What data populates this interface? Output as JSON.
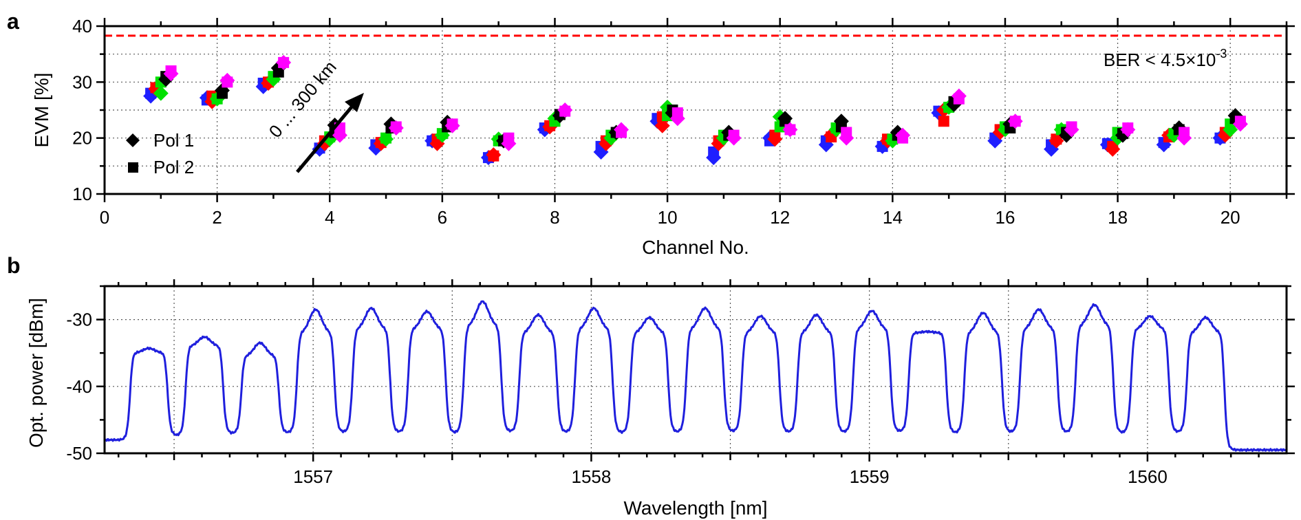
{
  "figure": {
    "panel_a_label": "a",
    "panel_b_label": "b"
  },
  "chart_data": [
    {
      "type": "scatter",
      "xlabel": "Channel No.",
      "ylabel": "EVM [%]",
      "xlim": [
        0,
        21
      ],
      "ylim": [
        10,
        40
      ],
      "xticks": [
        "0",
        "2",
        "4",
        "6",
        "8",
        "10",
        "12",
        "14",
        "16",
        "18",
        "20"
      ],
      "yticks": [
        "10",
        "20",
        "30",
        "40"
      ],
      "threshold": {
        "value": 38.3,
        "label": "BER < 4.5×10",
        "label_sup": "-3",
        "color": "#ff0000"
      },
      "annotation": {
        "text": "0 ... 300 km"
      },
      "legend": [
        {
          "label": "Pol 1",
          "marker": "diamond"
        },
        {
          "label": "Pol 2",
          "marker": "square"
        }
      ],
      "distance_colors": [
        "#1f1fff",
        "#ff0000",
        "#00e000",
        "#000000",
        "#ff00ff"
      ],
      "x_offsets": [
        -0.18,
        -0.09,
        0.0,
        0.09,
        0.18
      ],
      "channels": [
        1,
        2,
        3,
        4,
        5,
        6,
        7,
        8,
        9,
        10,
        11,
        12,
        13,
        14,
        15,
        16,
        17,
        18,
        19,
        20
      ],
      "series": [
        {
          "name": "Pol 1",
          "marker": "diamond",
          "values": [
            [
              27.5,
              28.8,
              28.0,
              30.5,
              31.5
            ],
            [
              27.2,
              26.5,
              27.0,
              28.5,
              30.3
            ],
            [
              29.2,
              29.8,
              30.5,
              32.5,
              33.5
            ],
            [
              18.0,
              19.0,
              19.8,
              22.3,
              20.5
            ],
            [
              18.2,
              19.0,
              19.8,
              22.5,
              21.8
            ],
            [
              19.5,
              19.0,
              20.5,
              22.8,
              22.2
            ],
            [
              16.5,
              17.0,
              19.8,
              19.5,
              19.0
            ],
            [
              21.5,
              22.0,
              23.5,
              24.0,
              25.0
            ],
            [
              17.5,
              19.0,
              20.0,
              21.0,
              21.5
            ],
            [
              23.0,
              22.2,
              25.5,
              24.5,
              23.5
            ],
            [
              16.5,
              19.0,
              20.0,
              21.0,
              20.0
            ],
            [
              20.0,
              19.8,
              23.8,
              23.5,
              21.5
            ],
            [
              18.8,
              20.5,
              21.5,
              23.0,
              20.0
            ],
            [
              18.5,
              19.5,
              19.5,
              21.0,
              20.5
            ],
            [
              24.5,
              25.0,
              25.5,
              26.0,
              27.5
            ],
            [
              19.5,
              21.0,
              21.5,
              22.5,
              23.0
            ],
            [
              18.0,
              19.5,
              21.5,
              20.5,
              21.5
            ],
            [
              18.8,
              18.0,
              20.0,
              20.5,
              21.5
            ],
            [
              18.8,
              20.5,
              20.5,
              21.8,
              20.0
            ],
            [
              20.0,
              20.5,
              21.5,
              24.0,
              22.5
            ]
          ]
        },
        {
          "name": "Pol 2",
          "marker": "square",
          "values": [
            [
              28.0,
              29.0,
              30.0,
              31.0,
              32.0
            ],
            [
              26.8,
              27.5,
              27.0,
              28.0,
              30.0
            ],
            [
              29.8,
              30.0,
              31.0,
              31.8,
              33.5
            ],
            [
              18.2,
              19.5,
              20.2,
              21.0,
              21.8
            ],
            [
              18.8,
              19.2,
              20.0,
              21.8,
              22.0
            ],
            [
              19.5,
              19.8,
              20.8,
              22.0,
              22.5
            ],
            [
              16.5,
              16.8,
              19.5,
              19.5,
              20.0
            ],
            [
              21.8,
              22.2,
              23.0,
              24.2,
              24.8
            ],
            [
              18.5,
              19.5,
              20.5,
              21.0,
              21.0
            ],
            [
              23.5,
              23.8,
              24.0,
              25.0,
              24.5
            ],
            [
              17.5,
              19.5,
              20.5,
              20.5,
              20.5
            ],
            [
              19.5,
              20.5,
              22.0,
              23.0,
              21.5
            ],
            [
              19.5,
              20.2,
              21.8,
              22.0,
              21.0
            ],
            [
              18.5,
              19.8,
              19.8,
              20.5,
              20.0
            ],
            [
              24.8,
              23.0,
              25.5,
              26.5,
              27.0
            ],
            [
              20.0,
              21.5,
              22.0,
              21.8,
              23.0
            ],
            [
              18.8,
              19.8,
              21.5,
              21.0,
              22.0
            ],
            [
              19.0,
              18.5,
              21.0,
              20.8,
              21.8
            ],
            [
              19.2,
              20.2,
              20.8,
              21.5,
              21.0
            ],
            [
              20.0,
              21.0,
              22.5,
              23.5,
              23.0
            ]
          ]
        }
      ]
    },
    {
      "type": "line",
      "xlabel": "Wavelength [nm]",
      "ylabel": "Opt. power [dBm]",
      "xlim": [
        1556.25,
        1560.5
      ],
      "ylim": [
        -50,
        -25
      ],
      "xticks": [
        1557,
        1558,
        1559,
        1560
      ],
      "xtick_labels": [
        "1557",
        "1558",
        "1559",
        "1560"
      ],
      "yticks": [
        "-30",
        "-40",
        "-50"
      ],
      "color": "#1f1fdd",
      "floor": -48.0,
      "end_level": -49.5,
      "channel_centers": [
        1556.409,
        1556.609,
        1556.809,
        1557.009,
        1557.209,
        1557.409,
        1557.609,
        1557.809,
        1558.009,
        1558.209,
        1558.409,
        1558.609,
        1558.809,
        1559.009,
        1559.209,
        1559.409,
        1559.609,
        1559.809,
        1560.009,
        1560.209
      ],
      "channel_peaks": [
        -34.3,
        -32.6,
        -33.5,
        -28.5,
        -28.3,
        -28.8,
        -27.3,
        -29.3,
        -28.3,
        -29.7,
        -28.3,
        -29.5,
        -29.3,
        -28.7,
        -31.8,
        -29.0,
        -28.5,
        -27.8,
        -29.5,
        -29.7
      ],
      "channel_shoulders": [
        -35.0,
        -34.0,
        -35.5,
        -32.0,
        -31.5,
        -31.5,
        -31.0,
        -32.0,
        -31.5,
        -32.0,
        -31.5,
        -32.0,
        -32.0,
        -31.5,
        -32.0,
        -32.0,
        -31.5,
        -31.0,
        -31.5,
        -32.0
      ],
      "trough_levels": [
        -47.3,
        -47.0,
        -46.9,
        -46.8,
        -46.8,
        -46.9,
        -46.7,
        -46.8,
        -46.9,
        -46.8,
        -46.7,
        -46.8,
        -46.8,
        -46.7,
        -46.9,
        -46.8,
        -46.8,
        -46.9,
        -46.8
      ]
    }
  ]
}
